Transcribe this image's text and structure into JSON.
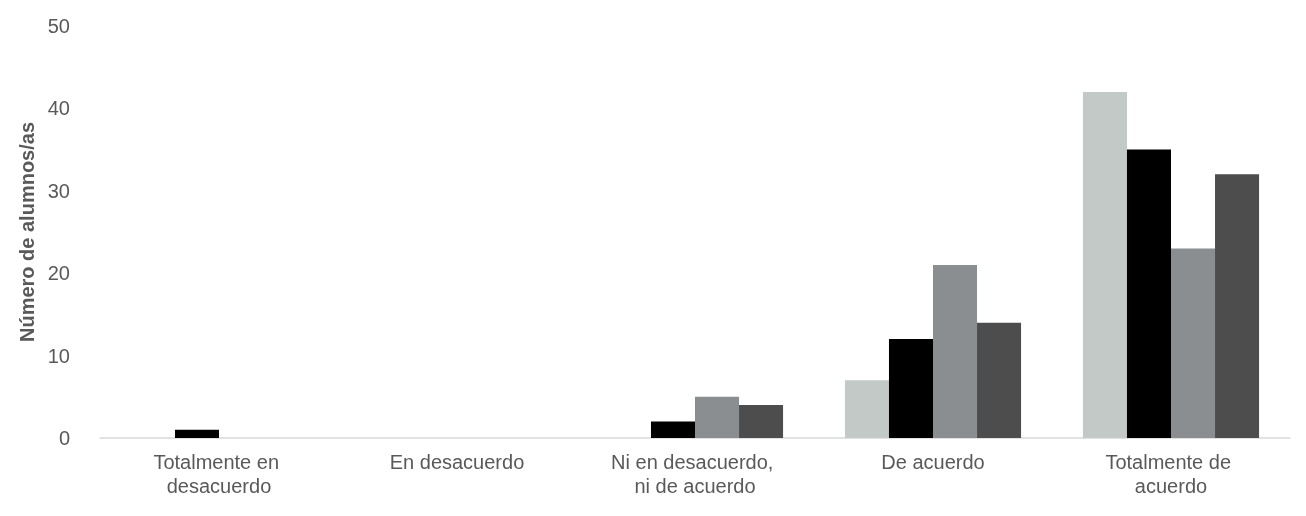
{
  "chart_data": {
    "type": "bar",
    "ylabel": "Número de alumnos/as",
    "categories": [
      "Totalmente en desacuerdo",
      "En desacuerdo",
      "Ni en desacuerdo, ni de acuerdo",
      "De acuerdo",
      "Totalmente de acuerdo"
    ],
    "series": [
      {
        "color": "#c3c9c7",
        "values": [
          0,
          0,
          0,
          7,
          42
        ]
      },
      {
        "color": "#000000",
        "values": [
          1,
          0,
          2,
          12,
          35
        ]
      },
      {
        "color": "#8a8e91",
        "values": [
          0,
          0,
          5,
          21,
          23
        ]
      },
      {
        "color": "#4d4d4d",
        "values": [
          0,
          0,
          4,
          14,
          32
        ]
      }
    ],
    "ylim": [
      0,
      50
    ],
    "yticks": [
      0,
      10,
      20,
      30,
      40,
      50
    ],
    "grid": false
  }
}
